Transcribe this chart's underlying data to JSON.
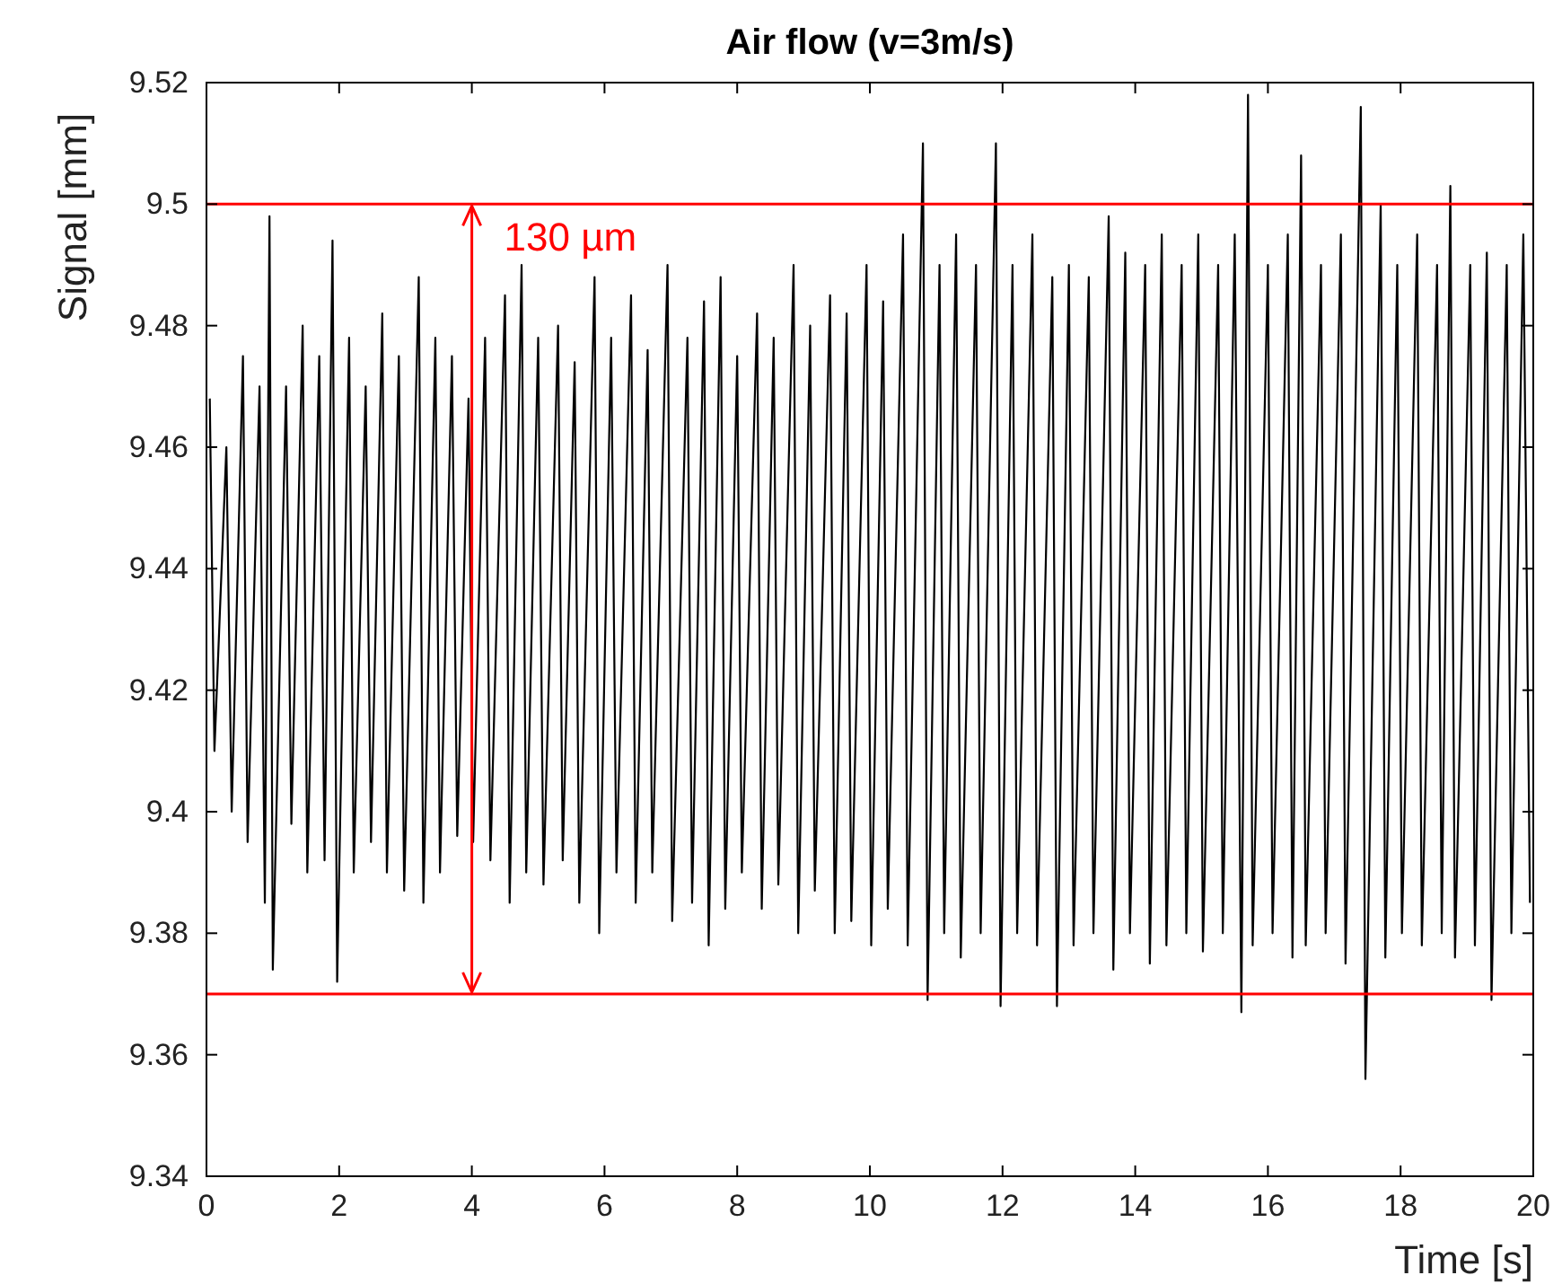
{
  "chart_data": {
    "type": "line",
    "title": "Air flow (v=3m/s)",
    "xlabel": "Time [s]",
    "ylabel": "Signal [mm]",
    "xlim": [
      0,
      20
    ],
    "xticks": [
      0,
      2,
      4,
      6,
      8,
      10,
      12,
      14,
      16,
      18,
      20
    ],
    "ylim": [
      9.34,
      9.52
    ],
    "yticks": [
      9.34,
      9.36,
      9.38,
      9.4,
      9.42,
      9.44,
      9.46,
      9.48,
      9.5,
      9.52
    ],
    "marker": "none",
    "line_style": "solid",
    "ref_lines": [
      {
        "axis": "y",
        "value": 9.5,
        "color": "#ff0000"
      },
      {
        "axis": "y",
        "value": 9.37,
        "color": "#ff0000"
      }
    ],
    "annotations": [
      {
        "text": "130 µm",
        "x": 4,
        "y": 9.5
      }
    ],
    "series": [
      {
        "color": "#000000",
        "x": [
          0.05,
          0.12,
          0.3,
          0.38,
          0.55,
          0.62,
          0.8,
          0.88,
          0.95,
          1.0,
          1.2,
          1.28,
          1.45,
          1.52,
          1.7,
          1.78,
          1.9,
          1.97,
          2.15,
          2.22,
          2.4,
          2.48,
          2.65,
          2.72,
          2.9,
          2.98,
          3.2,
          3.27,
          3.45,
          3.52,
          3.7,
          3.78,
          3.95,
          4.02,
          4.2,
          4.28,
          4.5,
          4.57,
          4.75,
          4.82,
          5.0,
          5.08,
          5.3,
          5.37,
          5.55,
          5.62,
          5.85,
          5.92,
          6.1,
          6.18,
          6.4,
          6.47,
          6.65,
          6.72,
          6.95,
          7.02,
          7.25,
          7.32,
          7.5,
          7.57,
          7.75,
          7.82,
          8.0,
          8.07,
          8.3,
          8.37,
          8.55,
          8.62,
          8.85,
          8.92,
          9.1,
          9.17,
          9.4,
          9.47,
          9.65,
          9.72,
          9.95,
          10.02,
          10.2,
          10.27,
          10.5,
          10.57,
          10.8,
          10.87,
          11.05,
          11.12,
          11.3,
          11.37,
          11.6,
          11.67,
          11.9,
          11.97,
          12.15,
          12.22,
          12.45,
          12.52,
          12.75,
          12.82,
          13.0,
          13.07,
          13.3,
          13.37,
          13.6,
          13.67,
          13.85,
          13.92,
          14.15,
          14.22,
          14.4,
          14.47,
          14.7,
          14.77,
          14.95,
          15.02,
          15.25,
          15.32,
          15.5,
          15.6,
          15.7,
          15.77,
          16.0,
          16.07,
          16.3,
          16.37,
          16.5,
          16.57,
          16.8,
          16.87,
          17.1,
          17.17,
          17.4,
          17.47,
          17.7,
          17.77,
          17.95,
          18.02,
          18.25,
          18.32,
          18.55,
          18.62,
          18.75,
          18.82,
          19.05,
          19.12,
          19.3,
          19.37,
          19.6,
          19.67,
          19.85,
          19.95
        ],
        "values": [
          9.468,
          9.41,
          9.46,
          9.4,
          9.475,
          9.395,
          9.47,
          9.385,
          9.498,
          9.374,
          9.47,
          9.398,
          9.48,
          9.39,
          9.475,
          9.392,
          9.494,
          9.372,
          9.478,
          9.39,
          9.47,
          9.395,
          9.482,
          9.39,
          9.475,
          9.387,
          9.488,
          9.385,
          9.478,
          9.39,
          9.475,
          9.396,
          9.468,
          9.395,
          9.478,
          9.392,
          9.485,
          9.385,
          9.49,
          9.39,
          9.478,
          9.388,
          9.48,
          9.392,
          9.474,
          9.385,
          9.488,
          9.38,
          9.478,
          9.39,
          9.485,
          9.385,
          9.476,
          9.39,
          9.49,
          9.382,
          9.478,
          9.385,
          9.484,
          9.378,
          9.488,
          9.384,
          9.475,
          9.39,
          9.482,
          9.384,
          9.478,
          9.388,
          9.49,
          9.38,
          9.48,
          9.387,
          9.485,
          9.38,
          9.482,
          9.382,
          9.49,
          9.378,
          9.484,
          9.384,
          9.495,
          9.378,
          9.51,
          9.369,
          9.49,
          9.38,
          9.495,
          9.376,
          9.49,
          9.38,
          9.51,
          9.368,
          9.49,
          9.38,
          9.495,
          9.378,
          9.488,
          9.368,
          9.49,
          9.378,
          9.488,
          9.38,
          9.498,
          9.374,
          9.492,
          9.38,
          9.49,
          9.375,
          9.495,
          9.378,
          9.49,
          9.38,
          9.495,
          9.377,
          9.49,
          9.38,
          9.495,
          9.367,
          9.518,
          9.378,
          9.49,
          9.38,
          9.495,
          9.376,
          9.508,
          9.378,
          9.49,
          9.38,
          9.495,
          9.375,
          9.516,
          9.356,
          9.5,
          9.376,
          9.49,
          9.38,
          9.495,
          9.378,
          9.49,
          9.38,
          9.503,
          9.376,
          9.49,
          9.378,
          9.492,
          9.369,
          9.49,
          9.38,
          9.495,
          9.385
        ]
      }
    ]
  }
}
